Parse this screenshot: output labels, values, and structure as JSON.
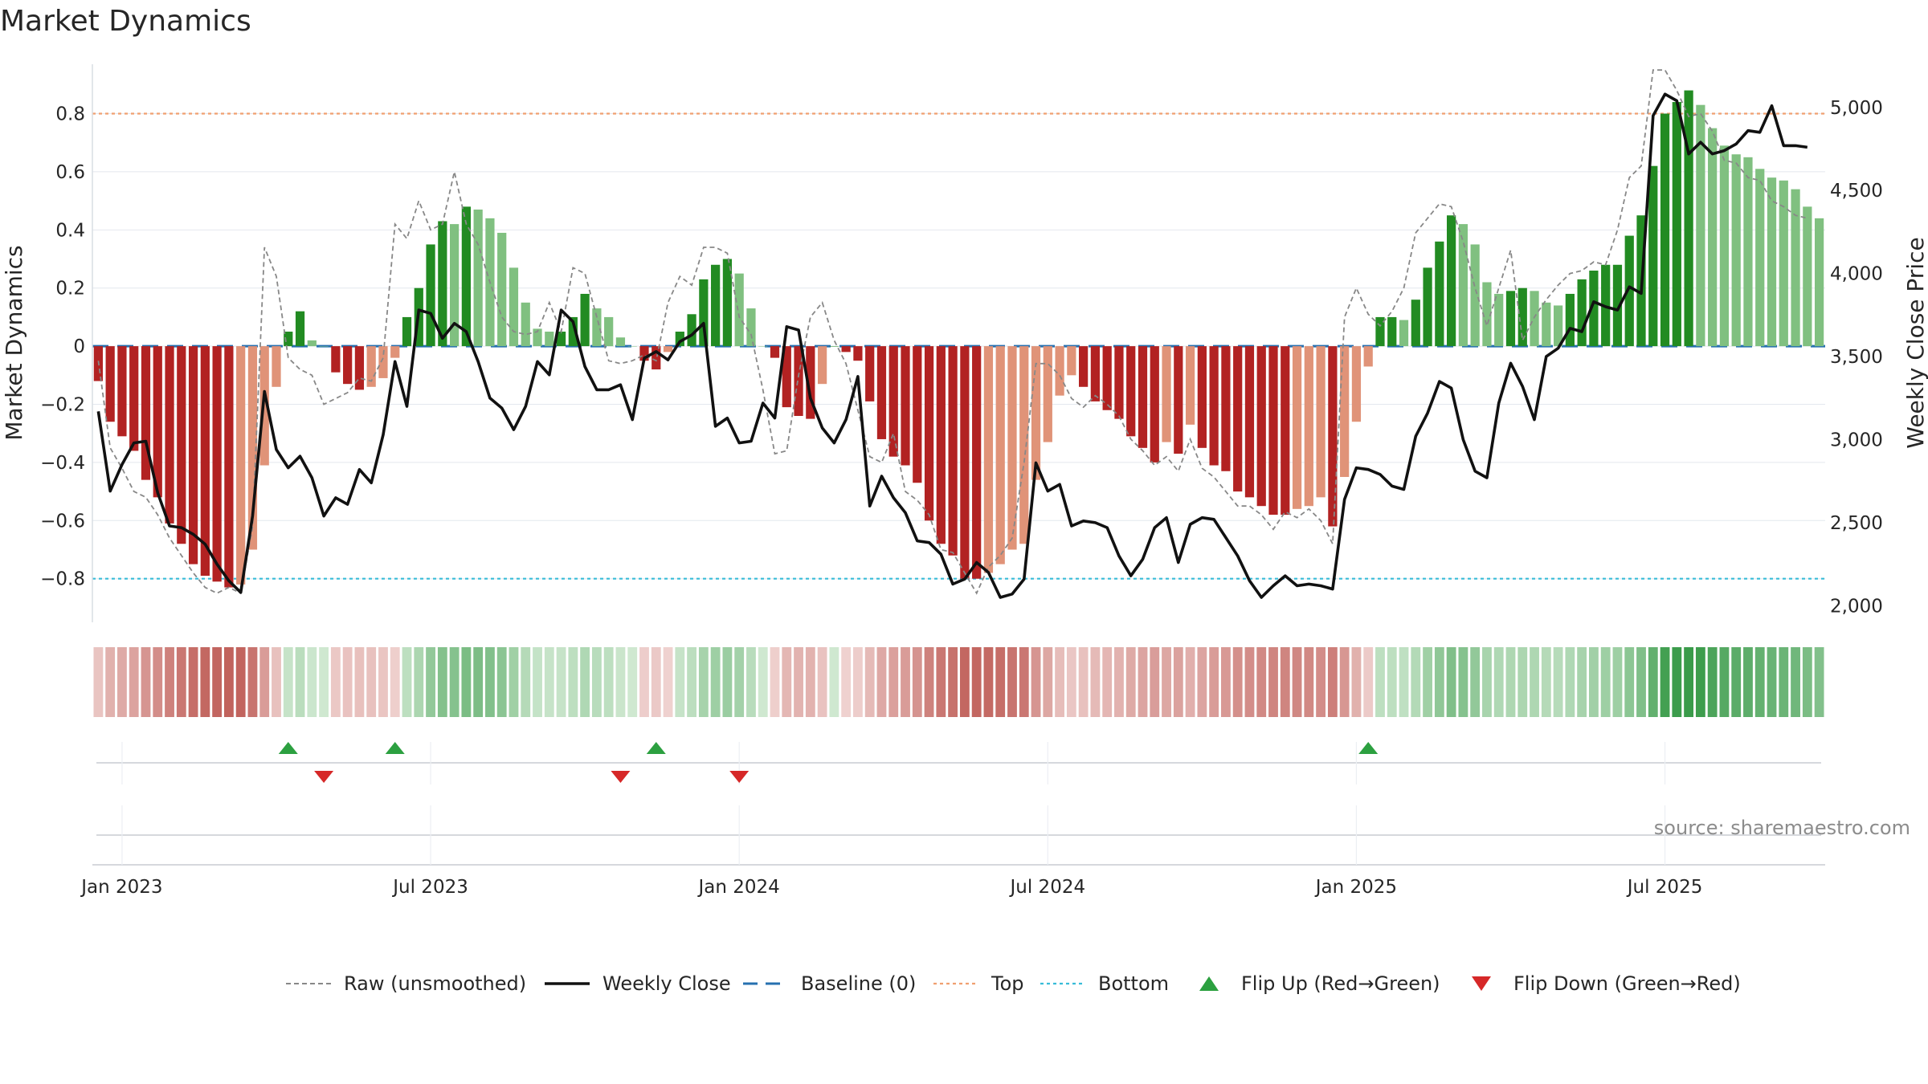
{
  "chart_data": {
    "type": "bar",
    "title": "Market Dynamics",
    "ylabel_left": "Market Dynamics",
    "ylabel_right": "Weekly Close Price",
    "left_ylim": [
      -0.95,
      0.97
    ],
    "right_ylim": [
      1900,
      5260
    ],
    "left_ticks": [
      {
        "v": 0.8,
        "label": "0.8"
      },
      {
        "v": 0.6,
        "label": "0.6"
      },
      {
        "v": 0.4,
        "label": "0.4"
      },
      {
        "v": 0.2,
        "label": "0.2"
      },
      {
        "v": 0,
        "label": "0"
      },
      {
        "v": -0.2,
        "label": "−0.2"
      },
      {
        "v": -0.4,
        "label": "−0.4"
      },
      {
        "v": -0.6,
        "label": "−0.6"
      },
      {
        "v": -0.8,
        "label": "−0.8"
      }
    ],
    "right_ticks": [
      {
        "v": 5000,
        "label": "5,000"
      },
      {
        "v": 4500,
        "label": "4,500"
      },
      {
        "v": 4000,
        "label": "4,000"
      },
      {
        "v": 3500,
        "label": "3,500"
      },
      {
        "v": 3000,
        "label": "3,000"
      },
      {
        "v": 2500,
        "label": "2,500"
      },
      {
        "v": 2000,
        "label": "2,000"
      }
    ],
    "x_ticks": [
      {
        "week": 2,
        "label": "Jan 2023"
      },
      {
        "week": 28,
        "label": "Jul 2023"
      },
      {
        "week": 54,
        "label": "Jan 2024"
      },
      {
        "week": 80,
        "label": "Jul 2024"
      },
      {
        "week": 106,
        "label": "Jan 2025"
      },
      {
        "week": 132,
        "label": "Jul 2025"
      }
    ],
    "top_level": 0.8,
    "bottom_level": -0.8,
    "baseline": 0,
    "bars": [
      -0.12,
      -0.26,
      -0.31,
      -0.36,
      -0.46,
      -0.52,
      -0.61,
      -0.68,
      -0.75,
      -0.79,
      -0.81,
      -0.83,
      -0.82,
      -0.7,
      -0.41,
      -0.14,
      0.05,
      0.12,
      0.02,
      0,
      -0.09,
      -0.13,
      -0.15,
      -0.14,
      -0.11,
      -0.04,
      0.1,
      0.2,
      0.35,
      0.43,
      0.42,
      0.48,
      0.47,
      0.44,
      0.39,
      0.27,
      0.15,
      0.06,
      0.05,
      0.05,
      0.1,
      0.18,
      0.13,
      0.1,
      0.03,
      0,
      -0.05,
      -0.08,
      -0.02,
      0.05,
      0.11,
      0.23,
      0.28,
      0.3,
      0.25,
      0.13,
      0,
      -0.04,
      -0.21,
      -0.24,
      -0.25,
      -0.13,
      0,
      -0.02,
      -0.05,
      -0.19,
      -0.32,
      -0.38,
      -0.41,
      -0.47,
      -0.6,
      -0.68,
      -0.72,
      -0.8,
      -0.8,
      -0.78,
      -0.75,
      -0.7,
      -0.68,
      -0.46,
      -0.33,
      -0.17,
      -0.1,
      -0.14,
      -0.19,
      -0.22,
      -0.25,
      -0.31,
      -0.35,
      -0.4,
      -0.33,
      -0.37,
      -0.27,
      -0.35,
      -0.41,
      -0.43,
      -0.5,
      -0.52,
      -0.55,
      -0.58,
      -0.58,
      -0.56,
      -0.55,
      -0.52,
      -0.62,
      -0.45,
      -0.26,
      -0.07,
      0.1,
      0.1,
      0.09,
      0.16,
      0.27,
      0.36,
      0.45,
      0.42,
      0.35,
      0.22,
      0.18,
      0.19,
      0.2,
      0.19,
      0.15,
      0.14,
      0.18,
      0.23,
      0.26,
      0.28,
      0.28,
      0.38,
      0.45,
      0.62,
      0.8,
      0.84,
      0.88,
      0.83,
      0.75,
      0.69,
      0.66,
      0.65,
      0.61,
      0.58,
      0.57,
      0.54,
      0.48,
      0.44
    ],
    "raw": [
      -0.05,
      -0.35,
      -0.42,
      -0.5,
      -0.52,
      -0.58,
      -0.66,
      -0.72,
      -0.78,
      -0.83,
      -0.85,
      -0.83,
      -0.85,
      -0.62,
      0.34,
      0.24,
      -0.04,
      -0.08,
      -0.1,
      -0.2,
      -0.18,
      -0.16,
      -0.11,
      -0.12,
      -0.04,
      0.42,
      0.37,
      0.5,
      0.4,
      0.42,
      0.6,
      0.42,
      0.35,
      0.22,
      0.1,
      0.05,
      0.04,
      0.05,
      0.15,
      0.05,
      0.27,
      0.25,
      0.1,
      -0.05,
      -0.06,
      -0.05,
      -0.03,
      -0.05,
      0.15,
      0.24,
      0.21,
      0.34,
      0.34,
      0.32,
      0.1,
      0.04,
      -0.15,
      -0.37,
      -0.36,
      -0.1,
      0.1,
      0.15,
      0.02,
      -0.06,
      -0.22,
      -0.38,
      -0.4,
      -0.3,
      -0.5,
      -0.53,
      -0.58,
      -0.7,
      -0.71,
      -0.78,
      -0.85,
      -0.76,
      -0.72,
      -0.66,
      -0.4,
      -0.06,
      -0.06,
      -0.1,
      -0.18,
      -0.21,
      -0.17,
      -0.2,
      -0.24,
      -0.32,
      -0.36,
      -0.41,
      -0.38,
      -0.43,
      -0.32,
      -0.42,
      -0.45,
      -0.5,
      -0.55,
      -0.55,
      -0.58,
      -0.63,
      -0.57,
      -0.59,
      -0.56,
      -0.6,
      -0.68,
      0.1,
      0.2,
      0.11,
      0.07,
      0.12,
      0.2,
      0.39,
      0.44,
      0.49,
      0.48,
      0.36,
      0.2,
      0.07,
      0.2,
      0.33,
      0.02,
      0.1,
      0.16,
      0.21,
      0.25,
      0.26,
      0.29,
      0.28,
      0.4,
      0.58,
      0.62,
      0.95,
      0.95,
      0.88,
      0.79,
      0.8,
      0.74,
      0.64,
      0.63,
      0.58,
      0.57,
      0.5,
      0.48,
      0.45,
      0.44
    ],
    "close": [
      3170,
      2690,
      2850,
      2980,
      2990,
      2680,
      2480,
      2470,
      2430,
      2370,
      2250,
      2150,
      2080,
      2540,
      3290,
      2940,
      2830,
      2900,
      2770,
      2540,
      2650,
      2610,
      2820,
      2740,
      3030,
      3470,
      3200,
      3780,
      3760,
      3610,
      3700,
      3650,
      3470,
      3250,
      3190,
      3060,
      3200,
      3470,
      3390,
      3780,
      3710,
      3440,
      3300,
      3300,
      3330,
      3120,
      3490,
      3530,
      3480,
      3590,
      3630,
      3700,
      3080,
      3130,
      2980,
      2990,
      3220,
      3130,
      3680,
      3660,
      3250,
      3070,
      2980,
      3120,
      3380,
      2600,
      2780,
      2650,
      2560,
      2390,
      2380,
      2310,
      2130,
      2160,
      2260,
      2200,
      2050,
      2070,
      2160,
      2860,
      2690,
      2730,
      2480,
      2510,
      2500,
      2470,
      2300,
      2180,
      2280,
      2470,
      2530,
      2260,
      2490,
      2530,
      2520,
      2410,
      2300,
      2150,
      2050,
      2120,
      2180,
      2120,
      2130,
      2120,
      2100,
      2640,
      2830,
      2820,
      2790,
      2720,
      2700,
      3020,
      3160,
      3350,
      3310,
      3000,
      2810,
      2770,
      3220,
      3460,
      3320,
      3120,
      3500,
      3550,
      3670,
      3650,
      3830,
      3800,
      3780,
      3920,
      3880,
      4950,
      5080,
      5040,
      4720,
      4790,
      4720,
      4740,
      4780,
      4860,
      4850,
      5010,
      4770,
      4770,
      4760
    ],
    "flip_up": [
      16,
      25,
      47,
      107
    ],
    "flip_down": [
      19,
      44,
      54
    ],
    "source": "source: sharemaestro.com",
    "legend": [
      "Raw (unsmoothed)",
      "Weekly Close",
      "Baseline (0)",
      "Top",
      "Bottom",
      "Flip Up (Red→Green)",
      "Flip Down (Green→Red)"
    ]
  },
  "colors": {
    "green_strong": "#228b22",
    "green_light": "#80c080",
    "red_strong": "#b22222",
    "red_light": "#e09378",
    "top_line": "#f0a070",
    "bottom_line": "#38bcd8",
    "baseline": "#2670b0",
    "close": "#111111",
    "raw": "#888888",
    "flip_up": "#2ca040",
    "flip_down": "#d62828"
  }
}
